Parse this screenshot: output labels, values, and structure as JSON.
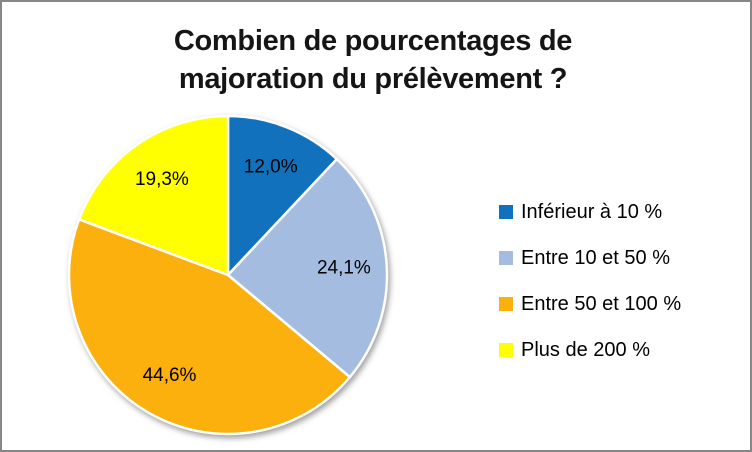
{
  "frame": {
    "border_color": "#878787",
    "background": "#FFFFFF"
  },
  "title_lines": [
    "Combien de pourcentages de",
    "majoration du prélèvement ?"
  ],
  "chart_data": {
    "type": "pie",
    "title": "Combien de pourcentages de majoration du prélèvement ?",
    "legend_position": "right",
    "rotation_start_deg": 0,
    "direction": "clockwise",
    "slices": [
      {
        "label": "Inférieur à 10 %",
        "value": 12.0,
        "display": "12,0%",
        "color": "#1171BD"
      },
      {
        "label": "Entre 10 et 50 %",
        "value": 24.1,
        "display": "24,1%",
        "color": "#A4BCDF"
      },
      {
        "label": "Entre 50 et 100 %",
        "value": 44.6,
        "display": "44,6%",
        "color": "#FCB00D"
      },
      {
        "label": "Plus de 200 %",
        "value": 19.3,
        "display": "19,3%",
        "color": "#FFFF00"
      }
    ]
  }
}
